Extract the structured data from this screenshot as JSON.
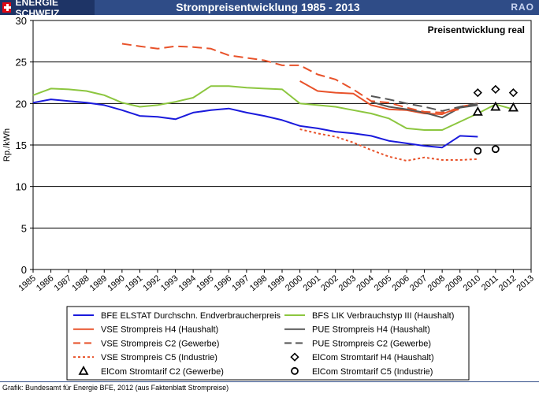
{
  "header": {
    "brand": "ENERGIE SCHWEIZ",
    "title": "Strompreisentwicklung 1985 - 2013",
    "corner_label": "RAO"
  },
  "footer": {
    "source": "Grafik: Bundesamt für Energie BFE, 2012 (aus Faktenblatt Strompreise)"
  },
  "colors": {
    "header_bg": "#2f4c87",
    "blue": "#1a1adc",
    "green": "#8cc63f",
    "orange": "#e8522a",
    "gray": "#555555"
  },
  "chart_data": {
    "type": "line",
    "title": "",
    "annotation": "Preisentwicklung real",
    "xlabel": "",
    "ylabel": "Rp./kWh",
    "xlim": [
      1985,
      2013
    ],
    "ylim": [
      0,
      30
    ],
    "yticks": [
      0,
      5,
      10,
      15,
      20,
      25,
      30
    ],
    "x": [
      1985,
      1986,
      1987,
      1988,
      1989,
      1990,
      1991,
      1992,
      1993,
      1994,
      1995,
      1996,
      1997,
      1998,
      1999,
      2000,
      2001,
      2002,
      2003,
      2004,
      2005,
      2006,
      2007,
      2008,
      2009,
      2010,
      2011,
      2012,
      2013
    ],
    "grid": "horizontal",
    "legend_position": "bottom",
    "series": [
      {
        "name": "BFE ELSTAT Durchschn. Endverbraucherpreis",
        "color": "#1a1adc",
        "style": "solid",
        "marker": "none",
        "x": [
          1985,
          1986,
          1987,
          1988,
          1989,
          1990,
          1991,
          1992,
          1993,
          1994,
          1995,
          1996,
          1997,
          1998,
          1999,
          2000,
          2001,
          2002,
          2003,
          2004,
          2005,
          2006,
          2007,
          2008,
          2009,
          2010
        ],
        "values": [
          20.1,
          20.5,
          20.3,
          20.1,
          19.8,
          19.2,
          18.5,
          18.4,
          18.1,
          18.9,
          19.2,
          19.4,
          18.9,
          18.5,
          18.0,
          17.3,
          17.0,
          16.6,
          16.4,
          16.1,
          15.5,
          15.2,
          14.9,
          14.7,
          16.1,
          16.0
        ]
      },
      {
        "name": "BFS LIK Verbrauchstyp III (Haushalt)",
        "color": "#8cc63f",
        "style": "solid",
        "marker": "none",
        "x": [
          1985,
          1986,
          1987,
          1988,
          1989,
          1990,
          1991,
          1992,
          1993,
          1994,
          1995,
          1996,
          1997,
          1998,
          1999,
          2000,
          2001,
          2002,
          2003,
          2004,
          2005,
          2006,
          2007,
          2008,
          2009,
          2010,
          2011,
          2012
        ],
        "values": [
          21.0,
          21.8,
          21.7,
          21.5,
          21.0,
          20.1,
          19.6,
          19.8,
          20.2,
          20.7,
          22.1,
          22.1,
          21.9,
          21.8,
          21.7,
          20.0,
          19.8,
          19.6,
          19.2,
          18.8,
          18.2,
          17.0,
          16.8,
          16.8,
          17.8,
          18.8,
          19.9,
          19.3
        ]
      },
      {
        "name": "VSE Strompreis H4 (Haushalt)",
        "color": "#e8522a",
        "style": "solid",
        "marker": "none",
        "x": [
          2000,
          2001,
          2002,
          2003,
          2004,
          2005,
          2006,
          2007,
          2008,
          2009,
          2010
        ],
        "values": [
          22.7,
          21.5,
          21.3,
          21.2,
          19.8,
          19.3,
          19.2,
          18.8,
          18.7,
          19.6,
          20.0
        ]
      },
      {
        "name": "PUE Strompreis H4 (Haushalt)",
        "color": "#555555",
        "style": "solid",
        "marker": "none",
        "x": [
          2004,
          2005,
          2006,
          2007,
          2008,
          2009,
          2010
        ],
        "values": [
          20.2,
          19.6,
          19.3,
          18.9,
          18.3,
          19.5,
          19.8
        ]
      },
      {
        "name": "VSE Strompreis C2 (Gewerbe)",
        "color": "#e8522a",
        "style": "longdash",
        "marker": "none",
        "x": [
          1990,
          1991,
          1992,
          1993,
          1994,
          1995,
          1996,
          1997,
          1998,
          1999,
          2000,
          2001,
          2002,
          2003,
          2004,
          2005,
          2006,
          2007,
          2008,
          2009
        ],
        "values": [
          27.2,
          26.9,
          26.6,
          26.9,
          26.8,
          26.6,
          25.8,
          25.5,
          25.2,
          24.6,
          24.6,
          23.5,
          22.9,
          21.7,
          20.3,
          20.1,
          19.5,
          19.0,
          18.9,
          19.3
        ]
      },
      {
        "name": "PUE Strompreis C2 (Gewerbe)",
        "color": "#555555",
        "style": "longdash",
        "marker": "none",
        "x": [
          2004,
          2005,
          2006,
          2007,
          2008,
          2009,
          2010
        ],
        "values": [
          20.9,
          20.5,
          20.0,
          19.6,
          19.1,
          19.6,
          20.0
        ]
      },
      {
        "name": "VSE Strompreis C5 (Industrie)",
        "color": "#e8522a",
        "style": "dotted",
        "marker": "none",
        "x": [
          2000,
          2001,
          2002,
          2003,
          2004,
          2005,
          2006,
          2007,
          2008,
          2009,
          2010
        ],
        "values": [
          16.9,
          16.4,
          16.0,
          15.3,
          14.4,
          13.6,
          13.1,
          13.5,
          13.2,
          13.2,
          13.3
        ]
      },
      {
        "name": "ElCom Stromtarif H4 (Haushalt)",
        "color": "#000000",
        "style": "none",
        "marker": "diamond",
        "x": [
          2010,
          2011,
          2012
        ],
        "values": [
          21.3,
          21.7,
          21.3
        ]
      },
      {
        "name": "ElCom Stromtarif C2 (Gewerbe)",
        "color": "#000000",
        "style": "none",
        "marker": "triangle",
        "x": [
          2010,
          2011,
          2012
        ],
        "values": [
          19.0,
          19.6,
          19.5
        ]
      },
      {
        "name": "ElCom Stromtarif C5 (Industrie)",
        "color": "#000000",
        "style": "none",
        "marker": "circle",
        "x": [
          2010,
          2011
        ],
        "values": [
          14.3,
          14.5
        ]
      }
    ]
  }
}
